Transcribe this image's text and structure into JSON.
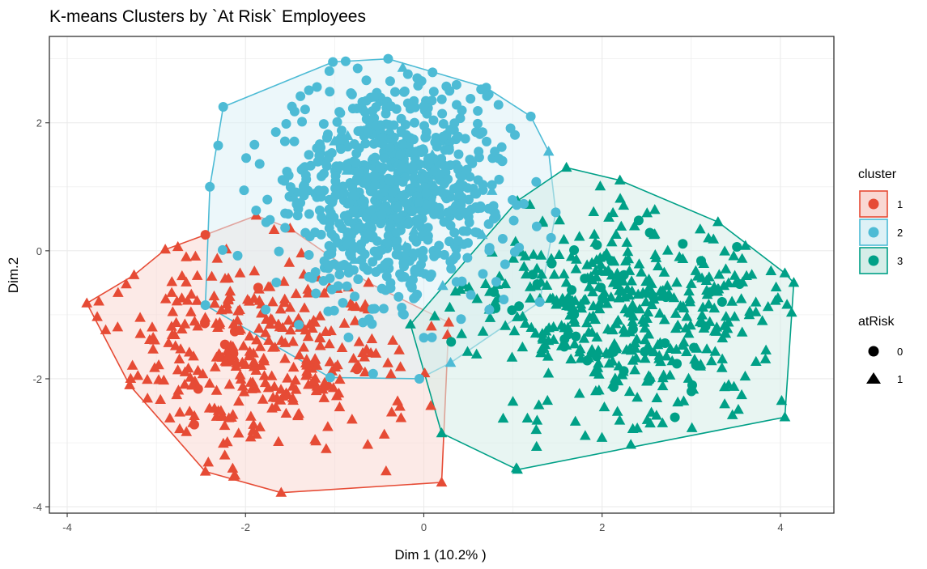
{
  "chart_data": {
    "type": "scatter",
    "title": "K-means Clusters by `At Risk` Employees",
    "xlabel": "Dim 1 (10.2% )",
    "ylabel": "Dim.2",
    "xlim": [
      -4.2,
      4.6
    ],
    "ylim": [
      -4.1,
      3.35
    ],
    "x_ticks": [
      -4,
      -2,
      0,
      2,
      4
    ],
    "y_ticks": [
      -4,
      -2,
      0,
      2
    ],
    "grid": true,
    "legend_position": "right",
    "clusters": [
      {
        "name": "1",
        "color": "#E64B35",
        "fill": "#F9D8D3",
        "hull": [
          [
            -3.78,
            -0.82
          ],
          [
            -3.25,
            -0.38
          ],
          [
            -2.9,
            0.02
          ],
          [
            -2.45,
            0.25
          ],
          [
            -1.88,
            0.55
          ],
          [
            -1.5,
            0.35
          ],
          [
            -0.62,
            -0.5
          ],
          [
            0.28,
            -1.12
          ],
          [
            0.2,
            -3.62
          ],
          [
            -1.6,
            -3.78
          ],
          [
            -2.45,
            -3.45
          ],
          [
            -3.3,
            -2.1
          ]
        ]
      },
      {
        "name": "2",
        "color": "#4DBBD5",
        "fill": "#DDF1F6",
        "hull": [
          [
            -2.25,
            2.25
          ],
          [
            -1.02,
            2.95
          ],
          [
            -0.4,
            3.0
          ],
          [
            0.7,
            2.55
          ],
          [
            1.2,
            2.1
          ],
          [
            1.4,
            1.55
          ],
          [
            1.48,
            0.6
          ],
          [
            1.3,
            -0.8
          ],
          [
            0.3,
            -1.75
          ],
          [
            -0.05,
            -2.0
          ],
          [
            -1.05,
            -1.98
          ],
          [
            -2.45,
            -0.85
          ],
          [
            -2.4,
            1.0
          ]
        ]
      },
      {
        "name": "3",
        "color": "#00A087",
        "fill": "#D5EDE8",
        "hull": [
          [
            -0.15,
            -1.15
          ],
          [
            1.05,
            0.78
          ],
          [
            1.6,
            1.3
          ],
          [
            2.2,
            1.1
          ],
          [
            3.3,
            0.45
          ],
          [
            4.05,
            -0.35
          ],
          [
            4.15,
            -0.5
          ],
          [
            4.05,
            -2.6
          ],
          [
            1.05,
            -3.42
          ],
          [
            0.2,
            -2.85
          ]
        ]
      }
    ],
    "atRisk_legend": [
      {
        "name": "0",
        "shape": "circle"
      },
      {
        "name": "1",
        "shape": "triangle"
      }
    ],
    "point_counts": {
      "cluster_1": 340,
      "cluster_2": 820,
      "cluster_3": 470
    }
  },
  "legend": {
    "cluster_title": "cluster",
    "atrisk_title": "atRisk"
  }
}
